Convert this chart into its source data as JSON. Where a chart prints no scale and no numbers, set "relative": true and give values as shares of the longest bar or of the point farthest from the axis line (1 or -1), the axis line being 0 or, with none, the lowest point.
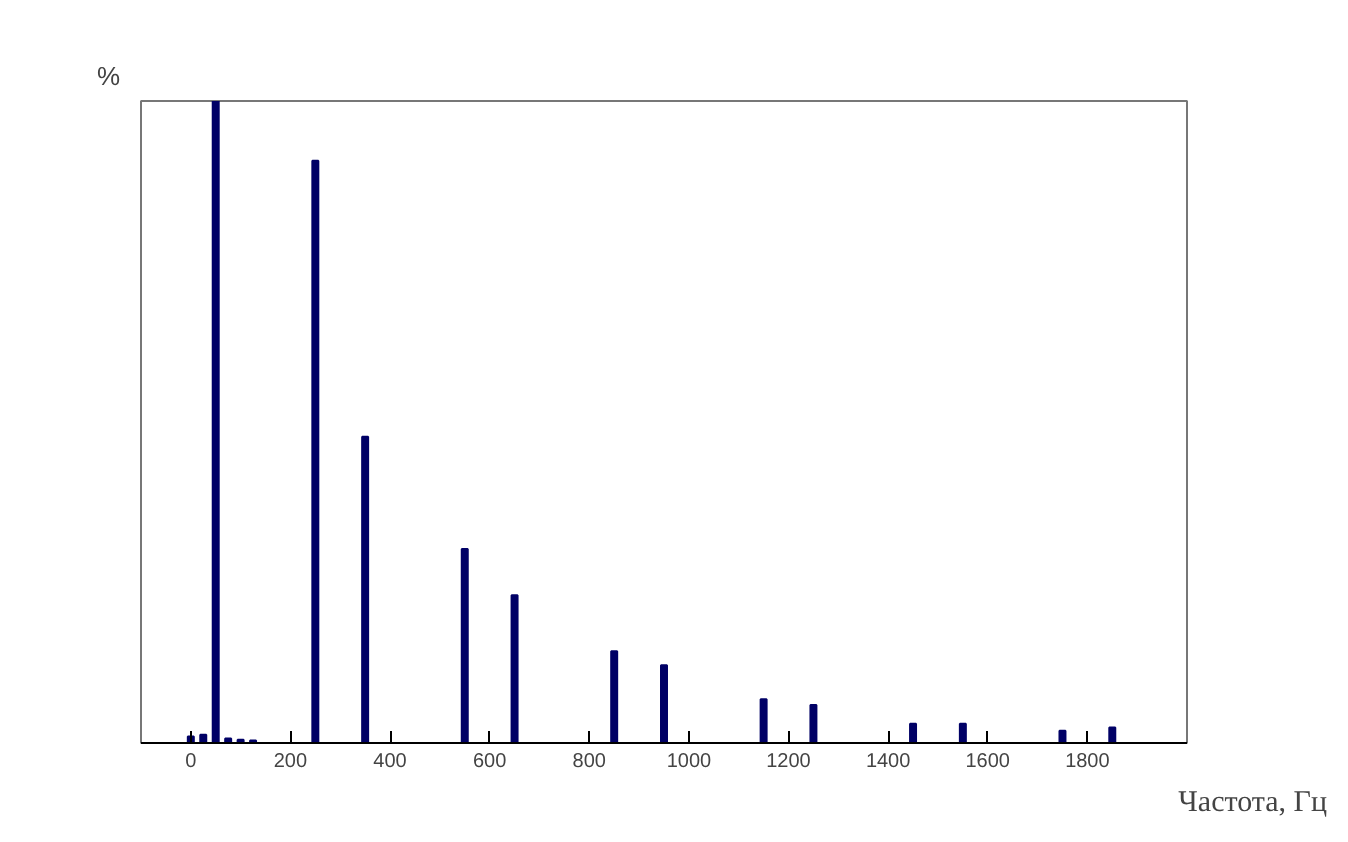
{
  "chart_data": {
    "type": "bar",
    "relative": true,
    "xlabel": "Частота, Гц",
    "ylabel": "%",
    "x": [
      0,
      25,
      50,
      75,
      100,
      125,
      250,
      350,
      550,
      650,
      850,
      950,
      1150,
      1250,
      1450,
      1550,
      1750,
      1850
    ],
    "values": [
      0.01,
      0.013,
      1,
      0.007,
      0.005,
      0.004,
      0.907,
      0.477,
      0.302,
      0.23,
      0.143,
      0.121,
      0.068,
      0.059,
      0.03,
      0.03,
      0.019,
      0.024
    ],
    "color": "#000066",
    "xlim": [
      -100,
      2000
    ],
    "xticks": [
      0,
      200,
      400,
      600,
      800,
      1000,
      1200,
      1400,
      1600,
      1800
    ],
    "tick_labels": "x"
  }
}
